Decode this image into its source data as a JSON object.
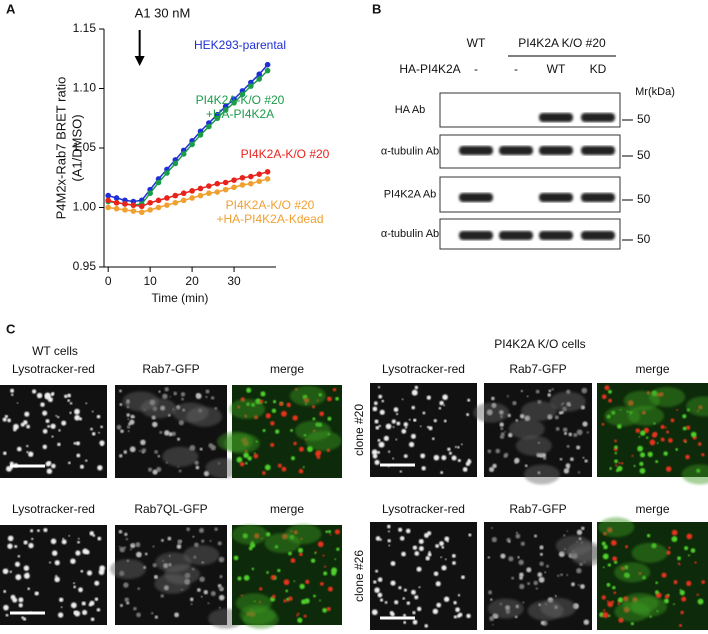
{
  "panel_labels": [
    "A",
    "B",
    "C"
  ],
  "chart_data": {
    "type": "line",
    "annotation": {
      "text": "A1 30 nM",
      "x": 7.5
    },
    "xlabel": "Time (min)",
    "ylabel": [
      "P4M2x-Rab7 BRET ratio",
      "(A1/DMSO)"
    ],
    "x": [
      0,
      2,
      4,
      6,
      8,
      10,
      12,
      14,
      16,
      18,
      20,
      22,
      24,
      26,
      28,
      30,
      32,
      34,
      36,
      38
    ],
    "series": [
      {
        "name": "HEK293-parental",
        "color": "#1f2fd6",
        "values": [
          1.01,
          1.008,
          1.006,
          1.005,
          1.006,
          1.015,
          1.024,
          1.032,
          1.04,
          1.048,
          1.056,
          1.064,
          1.071,
          1.078,
          1.085,
          1.091,
          1.098,
          1.105,
          1.112,
          1.12
        ]
      },
      {
        "name": "PI4K2A-K/O #20\n+HA-PI4K2A",
        "color": "#1a9c4a",
        "values": [
          1.005,
          1.004,
          1.003,
          1.002,
          1.003,
          1.012,
          1.021,
          1.029,
          1.037,
          1.045,
          1.053,
          1.061,
          1.068,
          1.075,
          1.082,
          1.088,
          1.095,
          1.102,
          1.108,
          1.115
        ]
      },
      {
        "name": "PI4K2A-K/O #20",
        "color": "#e8231c",
        "values": [
          1.006,
          1.004,
          1.003,
          1.002,
          1.001,
          1.004,
          1.006,
          1.008,
          1.01,
          1.012,
          1.014,
          1.016,
          1.018,
          1.02,
          1.021,
          1.023,
          1.025,
          1.026,
          1.028,
          1.03
        ]
      },
      {
        "name": "PI4K2A-K/O #20\n+HA-PI4K2A-Kdead",
        "color": "#f0a030",
        "values": [
          1.0,
          0.999,
          0.998,
          0.997,
          0.996,
          0.998,
          1.0,
          1.002,
          1.004,
          1.006,
          1.008,
          1.01,
          1.012,
          1.013,
          1.015,
          1.017,
          1.019,
          1.02,
          1.022,
          1.024
        ]
      }
    ],
    "xlim": [
      -1,
      40
    ],
    "xticks": [
      0,
      10,
      20,
      30
    ],
    "ylim": [
      0.95,
      1.15
    ],
    "yticks": [
      0.95,
      {
        "value": 1.0,
        "label": "1.00"
      },
      1.05,
      {
        "value": 1.1,
        "label": "1.10"
      },
      1.15
    ]
  },
  "blot": {
    "groups": [
      "WT",
      "PI4K2A K/O #20"
    ],
    "row_title": "HA-PI4K2A",
    "lanes": [
      "-",
      "-",
      "WT",
      "KD"
    ],
    "mr": "Mr(kDa)",
    "antibodies": [
      "HA Ab",
      "α-tubulin Ab",
      "PI4K2A Ab",
      "α-tubulin Ab"
    ],
    "markers": [
      "50",
      "50",
      "50",
      "50"
    ]
  },
  "microscopy": {
    "wt": {
      "title": "WT cells",
      "panels": [
        [
          "Lysotracker-red",
          "Rab7-GFP",
          "merge"
        ],
        [
          "Lysotracker-red",
          "Rab7QL-GFP",
          "merge"
        ]
      ]
    },
    "ko": {
      "title": "PI4K2A K/O cells",
      "clones": [
        "clone #20",
        "clone #26"
      ],
      "panels": [
        [
          "Lysotracker-red",
          "Rab7-GFP",
          "merge"
        ],
        [
          "Lysotracker-red",
          "Rab7-GFP",
          "merge"
        ]
      ]
    }
  }
}
